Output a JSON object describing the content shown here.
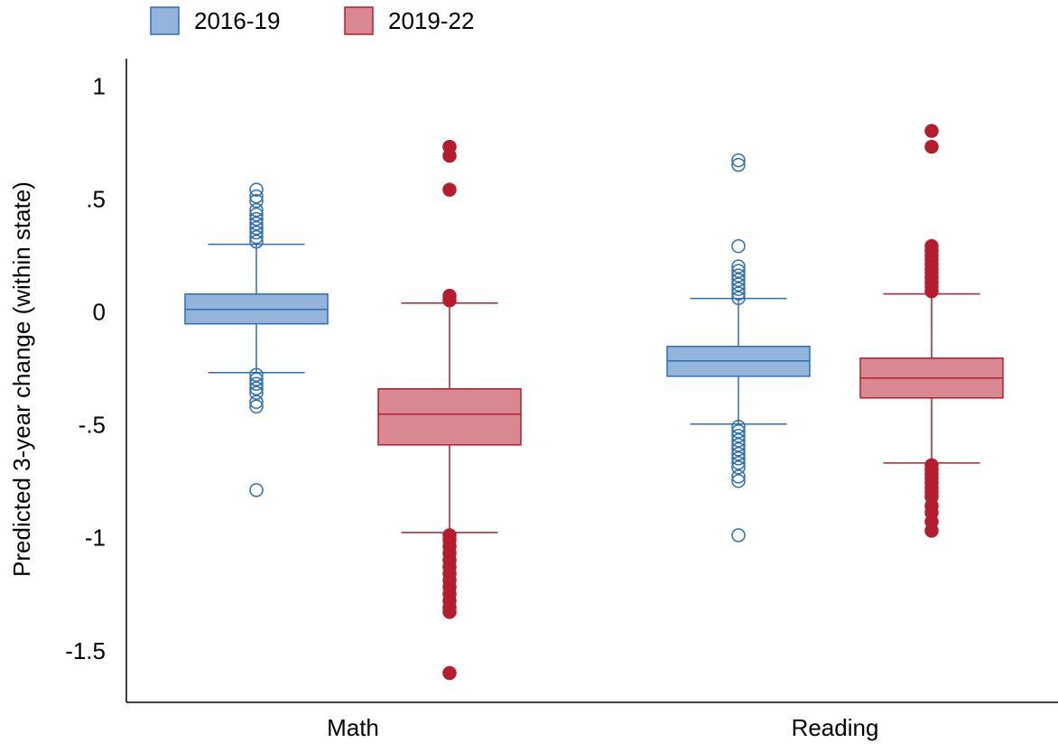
{
  "chart_data": {
    "type": "box",
    "y_label": "Predicted 3-year change (within state)",
    "categories": [
      "Math",
      "Reading"
    ],
    "ylim": [
      -1.72,
      1.13
    ],
    "yticks": [
      1,
      {
        "value": 0.5,
        "label": ".5"
      },
      0,
      {
        "value": -0.5,
        "label": "-.5"
      },
      -1,
      -1.5
    ],
    "legend": "top-left",
    "series": [
      {
        "name": "2016-19",
        "color": "#2e6db4",
        "fill": "#93b4db",
        "outlier_style": "hollow",
        "boxes": [
          {
            "low": -0.26,
            "q1": -0.044,
            "median": 0.02,
            "q3": 0.088,
            "high": 0.308,
            "outliers": [
              0.32,
              0.34,
              0.36,
              0.38,
              0.4,
              0.42,
              0.44,
              0.46,
              0.5,
              0.52,
              0.55,
              -0.27,
              -0.29,
              -0.31,
              -0.33,
              -0.35,
              -0.39,
              -0.41,
              -0.78
            ]
          },
          {
            "low": -0.488,
            "q1": -0.276,
            "median": -0.208,
            "q3": -0.144,
            "high": 0.068,
            "outliers": [
              0.07,
              0.09,
              0.11,
              0.13,
              0.15,
              0.17,
              0.19,
              0.21,
              0.3,
              0.66,
              0.68,
              -0.5,
              -0.52,
              -0.54,
              -0.56,
              -0.58,
              -0.6,
              -0.62,
              -0.64,
              -0.66,
              -0.68,
              -0.72,
              -0.74,
              -0.98
            ]
          }
        ]
      },
      {
        "name": "2019-22",
        "color": "#b51c2e",
        "fill": "#d98891",
        "outlier_style": "filled",
        "boxes": [
          {
            "low": -0.968,
            "q1": -0.58,
            "median": -0.444,
            "q3": -0.332,
            "high": 0.048,
            "outliers": [
              0.06,
              0.08,
              0.55,
              0.7,
              0.74,
              -0.98,
              -1.0,
              -1.03,
              -1.06,
              -1.09,
              -1.12,
              -1.15,
              -1.18,
              -1.21,
              -1.24,
              -1.27,
              -1.3,
              -1.32,
              -1.59
            ]
          },
          {
            "low": -0.66,
            "q1": -0.372,
            "median": -0.284,
            "q3": -0.196,
            "high": 0.088,
            "outliers": [
              0.1,
              0.12,
              0.14,
              0.16,
              0.18,
              0.2,
              0.22,
              0.24,
              0.26,
              0.28,
              0.3,
              0.74,
              0.81,
              -0.67,
              -0.69,
              -0.71,
              -0.73,
              -0.75,
              -0.77,
              -0.79,
              -0.81,
              -0.85,
              -0.88,
              -0.92,
              -0.96
            ]
          }
        ]
      }
    ]
  }
}
